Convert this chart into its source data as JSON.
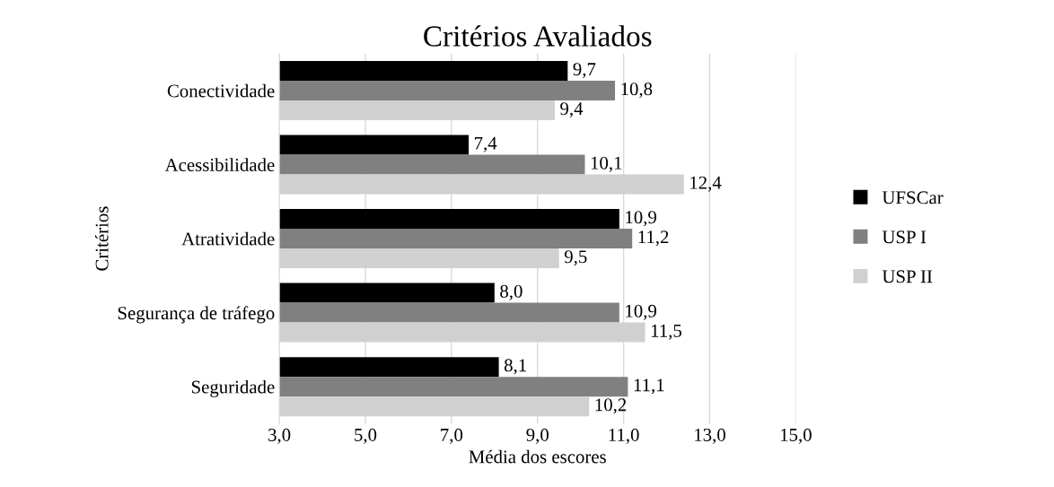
{
  "chart_data": {
    "type": "bar",
    "orientation": "horizontal",
    "title": "Critérios Avaliados",
    "xlabel": "Média dos escores",
    "ylabel": "Critérios",
    "categories": [
      "Conectividade",
      "Acessibilidade",
      "Atratividade",
      "Segurança de tráfego",
      "Seguridade"
    ],
    "series": [
      {
        "name": "UFSCar",
        "color": "#000000",
        "values": [
          9.7,
          7.4,
          10.9,
          8.0,
          8.1
        ],
        "value_labels": [
          "9,7",
          "7,4",
          "10,9",
          "8,0",
          "8,1"
        ]
      },
      {
        "name": "USP I",
        "color": "#808080",
        "values": [
          10.8,
          10.1,
          11.2,
          10.9,
          11.1
        ],
        "value_labels": [
          "10,8",
          "10,1",
          "11,2",
          "10,9",
          "11,1"
        ]
      },
      {
        "name": "USP II",
        "color": "#d0d0d0",
        "values": [
          9.4,
          12.4,
          9.5,
          11.5,
          10.2
        ],
        "value_labels": [
          "9,4",
          "12,4",
          "9,5",
          "11,5",
          "10,2"
        ]
      }
    ],
    "xlim": [
      3,
      15
    ],
    "xticks": [
      {
        "value": 3,
        "label": "3,0"
      },
      {
        "value": 5,
        "label": "5,0"
      },
      {
        "value": 7,
        "label": "7,0"
      },
      {
        "value": 9,
        "label": "9,0"
      },
      {
        "value": 11,
        "label": "11,0"
      },
      {
        "value": 13,
        "label": "13,0"
      },
      {
        "value": 15,
        "label": "15,0"
      }
    ],
    "grid": "x",
    "legend": "right"
  }
}
